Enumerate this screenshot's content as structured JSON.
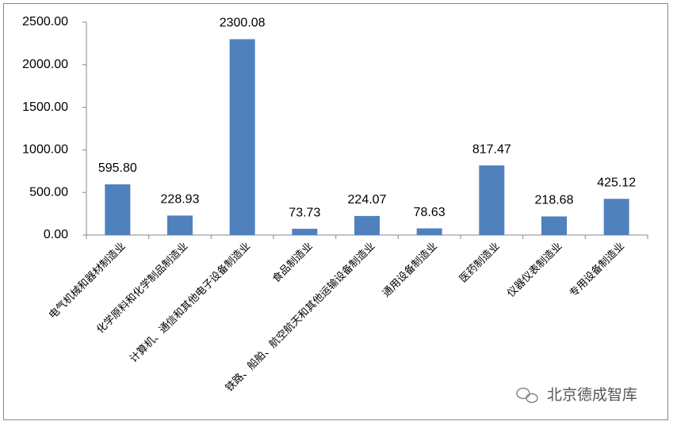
{
  "chart_data": {
    "type": "bar",
    "categories": [
      "电气机械和器材制造业",
      "化学原料和化学制品制造业",
      "计算机、通信和其他电子设备制造业",
      "食品制造业",
      "铁路、船舶、航空航天和其他运输设备制造业",
      "通用设备制造业",
      "医药制造业",
      "仪器仪表制造业",
      "专用设备制造业"
    ],
    "values": [
      595.8,
      228.93,
      2300.08,
      73.73,
      224.07,
      78.63,
      817.47,
      218.68,
      425.12
    ],
    "value_labels": [
      "595.80",
      "228.93",
      "2300.08",
      "73.73",
      "224.07",
      "78.63",
      "817.47",
      "218.68",
      "425.12"
    ],
    "color": "#4f81bd",
    "ylim": [
      0,
      2500
    ],
    "yticks": [
      {
        "value": 0,
        "label": "0.00"
      },
      {
        "value": 500,
        "label": "500.00"
      },
      {
        "value": 1000,
        "label": "1000.00"
      },
      {
        "value": 1500,
        "label": "1500.00"
      },
      {
        "value": 2000,
        "label": "2000.00"
      },
      {
        "value": 2500,
        "label": "2500.00"
      }
    ],
    "grid": false,
    "watermark": "北京德成智库"
  }
}
